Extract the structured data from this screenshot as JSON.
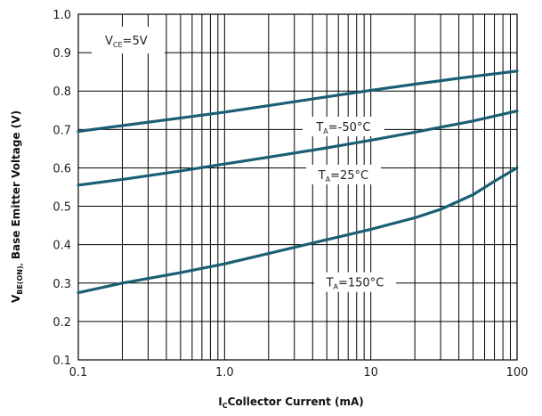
{
  "chart_data": {
    "type": "line",
    "xscale": "log",
    "xlim": [
      0.1,
      100
    ],
    "ylim": [
      0.1,
      1.0
    ],
    "grid": true,
    "x_tick_labels": [
      "0.1",
      "1.0",
      "10",
      "100"
    ],
    "y_tick_labels": [
      "0.1",
      "0.2",
      "0.3",
      "0.4",
      "0.5",
      "0.6",
      "0.7",
      "0.8",
      "0.9",
      "1.0"
    ],
    "xlabel": {
      "main": "I",
      "sub": "C",
      "rest": "Collector Current (mA)"
    },
    "ylabel": {
      "main": "V",
      "sub": "BE(ON),",
      "rest": " Base Emitter Voltage (V)"
    },
    "line_color": "#1a5f73",
    "series": [
      {
        "name": "TA=-50°C",
        "label": {
          "main": "T",
          "sub": "A",
          "rest": "=-50°C"
        },
        "x": [
          0.1,
          0.2,
          0.5,
          1,
          2,
          5,
          10,
          20,
          50,
          100
        ],
        "y": [
          0.695,
          0.71,
          0.73,
          0.745,
          0.762,
          0.785,
          0.802,
          0.818,
          0.838,
          0.852
        ]
      },
      {
        "name": "TA=25°C",
        "label": {
          "main": "T",
          "sub": "A",
          "rest": "=25°C"
        },
        "x": [
          0.1,
          0.2,
          0.5,
          1,
          2,
          5,
          10,
          20,
          50,
          100
        ],
        "y": [
          0.555,
          0.57,
          0.592,
          0.61,
          0.628,
          0.652,
          0.672,
          0.693,
          0.722,
          0.748
        ]
      },
      {
        "name": "TA=150°C",
        "label": {
          "main": "T",
          "sub": "A",
          "rest": "=150°C"
        },
        "x": [
          0.1,
          0.2,
          0.5,
          1,
          2,
          5,
          10,
          20,
          30,
          50,
          70,
          100
        ],
        "y": [
          0.275,
          0.3,
          0.327,
          0.35,
          0.377,
          0.413,
          0.44,
          0.47,
          0.492,
          0.53,
          0.565,
          0.6
        ]
      }
    ],
    "annotation": {
      "main": "V",
      "sub": "CE",
      "rest": "=5V"
    }
  }
}
